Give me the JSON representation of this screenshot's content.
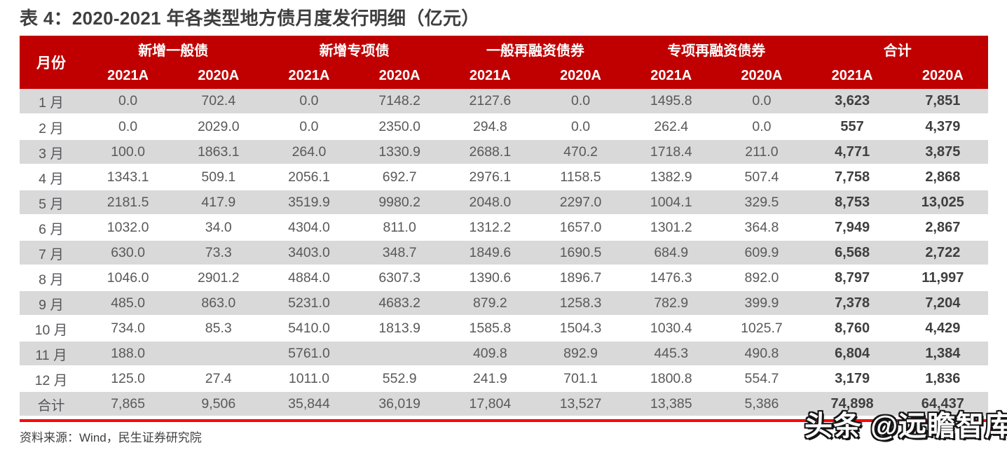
{
  "title": "表 4：2020-2021 年各类型地方债月度发行明细（亿元）",
  "colors": {
    "header_bg": "#C00000",
    "row_stripe": "#D9D9D9",
    "row_plain": "#FFFFFF",
    "divider_red": "#FE0000",
    "header_text": "#FFFFFF",
    "data_text": "#58595B",
    "total_text": "#3F3F3F",
    "title_text": "#3F3F3F"
  },
  "table": {
    "month_header": "月份",
    "groups": [
      {
        "label": "新增一般债"
      },
      {
        "label": "新增专项债"
      },
      {
        "label": "一般再融资债券"
      },
      {
        "label": "专项再融资债券"
      },
      {
        "label": "合计"
      }
    ],
    "year_cols": [
      "2021A",
      "2020A",
      "2021A",
      "2020A",
      "2021A",
      "2020A",
      "2021A",
      "2020A",
      "2021A",
      "2020A"
    ],
    "rows": [
      {
        "month": "1 月",
        "values": [
          "0.0",
          "702.4",
          "0.0",
          "7148.2",
          "2127.6",
          "0.0",
          "1495.8",
          "0.0",
          "3,623",
          "7,851"
        ]
      },
      {
        "month": "2 月",
        "values": [
          "0.0",
          "2029.0",
          "0.0",
          "2350.0",
          "294.8",
          "0.0",
          "262.4",
          "0.0",
          "557",
          "4,379"
        ]
      },
      {
        "month": "3 月",
        "values": [
          "100.0",
          "1863.1",
          "264.0",
          "1330.9",
          "2688.1",
          "470.2",
          "1718.4",
          "211.0",
          "4,771",
          "3,875"
        ]
      },
      {
        "month": "4 月",
        "values": [
          "1343.1",
          "509.1",
          "2056.1",
          "692.7",
          "2976.1",
          "1158.5",
          "1382.9",
          "507.4",
          "7,758",
          "2,868"
        ]
      },
      {
        "month": "5 月",
        "values": [
          "2181.5",
          "417.9",
          "3519.9",
          "9980.2",
          "2048.0",
          "2297.0",
          "1004.1",
          "329.5",
          "8,753",
          "13,025"
        ]
      },
      {
        "month": "6 月",
        "values": [
          "1032.0",
          "34.0",
          "4304.0",
          "811.0",
          "1312.2",
          "1657.0",
          "1301.2",
          "364.8",
          "7,949",
          "2,867"
        ]
      },
      {
        "month": "7 月",
        "values": [
          "630.0",
          "73.3",
          "3403.0",
          "348.7",
          "1849.6",
          "1690.5",
          "684.9",
          "609.9",
          "6,568",
          "2,722"
        ]
      },
      {
        "month": "8 月",
        "values": [
          "1046.0",
          "2901.2",
          "4884.0",
          "6307.3",
          "1390.6",
          "1896.7",
          "1476.3",
          "892.0",
          "8,797",
          "11,997"
        ]
      },
      {
        "month": "9 月",
        "values": [
          "485.0",
          "863.0",
          "5231.0",
          "4683.2",
          "879.2",
          "1258.3",
          "782.9",
          "399.9",
          "7,378",
          "7,204"
        ]
      },
      {
        "month": "10 月",
        "values": [
          "734.0",
          "85.3",
          "5410.0",
          "1813.9",
          "1585.8",
          "1504.3",
          "1030.4",
          "1025.7",
          "8,760",
          "4,429"
        ]
      },
      {
        "month": "11 月",
        "values": [
          "188.0",
          "",
          "5761.0",
          "",
          "409.8",
          "892.9",
          "445.3",
          "490.8",
          "6,804",
          "1,384"
        ]
      },
      {
        "month": "12 月",
        "values": [
          "125.0",
          "27.4",
          "1011.0",
          "552.9",
          "241.9",
          "701.1",
          "1800.8",
          "554.7",
          "3,179",
          "1,836"
        ]
      },
      {
        "month": "合计",
        "values": [
          "7,865",
          "9,506",
          "35,844",
          "36,019",
          "17,804",
          "13,527",
          "13,385",
          "5,386",
          "74,898",
          "64,437"
        ]
      }
    ]
  },
  "source": {
    "text": "资料来源：Wind，民生证券研究院"
  },
  "watermark": {
    "text": "头条 @远瞻智库"
  }
}
